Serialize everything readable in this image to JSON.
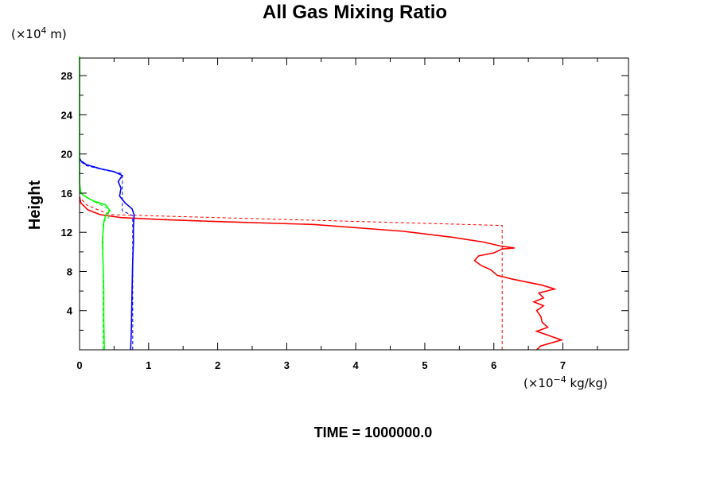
{
  "chart_data": {
    "type": "line",
    "title": "All Gas Mixing Ratio",
    "ylabel": "Height",
    "yunit": {
      "prefix": "(×10",
      "exp": "4",
      "suffix": " m)"
    },
    "xunit": {
      "prefix": "(×10",
      "exp": "−4",
      "suffix": " kg/kg)"
    },
    "footer": "TIME = 1000000.0",
    "xlim": [
      0,
      7.95
    ],
    "ylim": [
      0,
      29.8
    ],
    "x_ticks": [
      "0",
      "1",
      "2",
      "3",
      "4",
      "5",
      "6",
      "7"
    ],
    "y_ticks": [
      "4",
      "8",
      "12",
      "16",
      "20",
      "24",
      "28"
    ],
    "series": [
      {
        "color": "#ff0000",
        "style": "solid",
        "points": [
          [
            6.62,
            0
          ],
          [
            6.68,
            0.4
          ],
          [
            6.98,
            1.0
          ],
          [
            6.62,
            1.9
          ],
          [
            6.78,
            2.3
          ],
          [
            6.7,
            2.8
          ],
          [
            6.68,
            3.4
          ],
          [
            6.62,
            4.0
          ],
          [
            6.72,
            4.5
          ],
          [
            6.58,
            4.9
          ],
          [
            6.72,
            5.3
          ],
          [
            6.65,
            5.8
          ],
          [
            6.88,
            6.2
          ],
          [
            6.7,
            6.6
          ],
          [
            6.28,
            7.2
          ],
          [
            6.05,
            7.6
          ],
          [
            5.95,
            8.2
          ],
          [
            5.82,
            8.6
          ],
          [
            5.72,
            9.1
          ],
          [
            5.78,
            9.6
          ],
          [
            6.0,
            9.9
          ],
          [
            6.12,
            10.3
          ],
          [
            6.3,
            10.4
          ],
          [
            6.1,
            10.6
          ],
          [
            5.85,
            11.0
          ],
          [
            5.4,
            11.5
          ],
          [
            4.7,
            12.1
          ],
          [
            3.4,
            12.8
          ],
          [
            2.0,
            13.1
          ],
          [
            1.2,
            13.3
          ],
          [
            0.6,
            13.5
          ],
          [
            0.3,
            13.8
          ],
          [
            0.12,
            14.3
          ],
          [
            0.02,
            15.0
          ],
          [
            0,
            15.6
          ]
        ]
      },
      {
        "color": "#ff0000",
        "style": "dashed",
        "points": [
          [
            6.12,
            0
          ],
          [
            6.12,
            12.7
          ],
          [
            0.45,
            13.8
          ],
          [
            0.3,
            14.2
          ],
          [
            0.1,
            14.8
          ],
          [
            0,
            15.6
          ]
        ]
      },
      {
        "color": "#0000ff",
        "style": "solid",
        "points": [
          [
            0.74,
            0
          ],
          [
            0.75,
            2.0
          ],
          [
            0.76,
            6.0
          ],
          [
            0.77,
            9.0
          ],
          [
            0.78,
            11.0
          ],
          [
            0.78,
            12.5
          ],
          [
            0.79,
            13.8
          ],
          [
            0.76,
            14.4
          ],
          [
            0.66,
            15.0
          ],
          [
            0.58,
            15.7
          ],
          [
            0.6,
            16.5
          ],
          [
            0.56,
            17.2
          ],
          [
            0.62,
            17.8
          ],
          [
            0.5,
            18.2
          ],
          [
            0.3,
            18.5
          ],
          [
            0.1,
            18.9
          ],
          [
            0.02,
            19.3
          ],
          [
            0,
            19.6
          ]
        ]
      },
      {
        "color": "#0000ff",
        "style": "dashed",
        "points": [
          [
            0.77,
            0
          ],
          [
            0.77,
            13.7
          ],
          [
            0.62,
            14.2
          ],
          [
            0.62,
            18.0
          ],
          [
            0.4,
            18.3
          ],
          [
            0.1,
            18.8
          ],
          [
            0,
            19.3
          ]
        ]
      },
      {
        "color": "#00ff00",
        "style": "solid",
        "points": [
          [
            0,
            30
          ],
          [
            0,
            17
          ],
          [
            0.02,
            16.0
          ],
          [
            0.1,
            15.6
          ],
          [
            0.2,
            15.2
          ],
          [
            0.38,
            14.8
          ],
          [
            0.44,
            14.2
          ],
          [
            0.38,
            13.8
          ],
          [
            0.35,
            13.0
          ],
          [
            0.33,
            11.0
          ],
          [
            0.34,
            9.0
          ],
          [
            0.35,
            6.0
          ],
          [
            0.35,
            3.0
          ],
          [
            0.36,
            0
          ]
        ]
      },
      {
        "color": "#00ff00",
        "style": "dashed",
        "points": [
          [
            0.34,
            0
          ],
          [
            0.34,
            13.0
          ],
          [
            0.42,
            13.5
          ],
          [
            0.42,
            14.4
          ],
          [
            0.25,
            15.0
          ],
          [
            0.05,
            15.8
          ],
          [
            0,
            16.2
          ]
        ]
      }
    ]
  }
}
